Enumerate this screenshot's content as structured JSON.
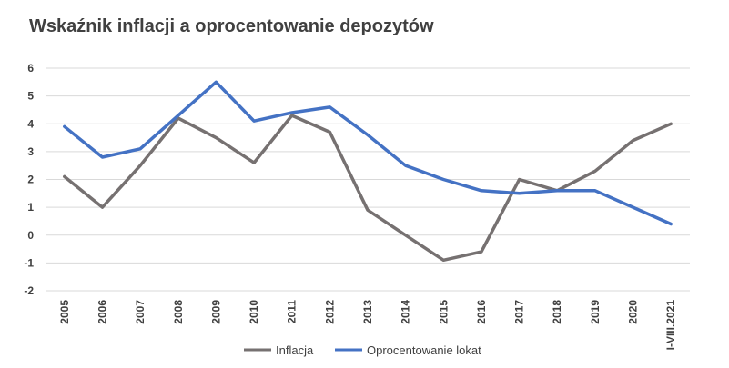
{
  "chart_data": {
    "type": "line",
    "title": "Wskaźnik inflacji a oprocentowanie depozytów",
    "xlabel": "",
    "ylabel": "",
    "ylim": [
      -2,
      6
    ],
    "yticks": [
      "6",
      "5",
      "4",
      "3",
      "2",
      "1",
      "0",
      "-1",
      "-2"
    ],
    "ytick_values": [
      6,
      5,
      4,
      3,
      2,
      1,
      0,
      -1,
      -2
    ],
    "categories": [
      "2005",
      "2006",
      "2007",
      "2008",
      "2009",
      "2010",
      "2011",
      "2012",
      "2013",
      "2014",
      "2015",
      "2016",
      "2017",
      "2018",
      "2019",
      "2020",
      "I-VIII.2021"
    ],
    "grid": true,
    "legend_position": "bottom",
    "series": [
      {
        "name": "Inflacja",
        "color": "#767171",
        "values": [
          2.1,
          1.0,
          2.5,
          4.2,
          3.5,
          2.6,
          4.3,
          3.7,
          0.9,
          0.0,
          -0.9,
          -0.6,
          2.0,
          1.6,
          2.3,
          3.4,
          4.0
        ]
      },
      {
        "name": "Oprocentowanie lokat",
        "color": "#4472c4",
        "values": [
          3.9,
          2.8,
          3.1,
          4.3,
          5.5,
          4.1,
          4.4,
          4.6,
          3.6,
          2.5,
          2.0,
          1.6,
          1.5,
          1.6,
          1.6,
          1.0,
          0.4
        ]
      }
    ]
  }
}
